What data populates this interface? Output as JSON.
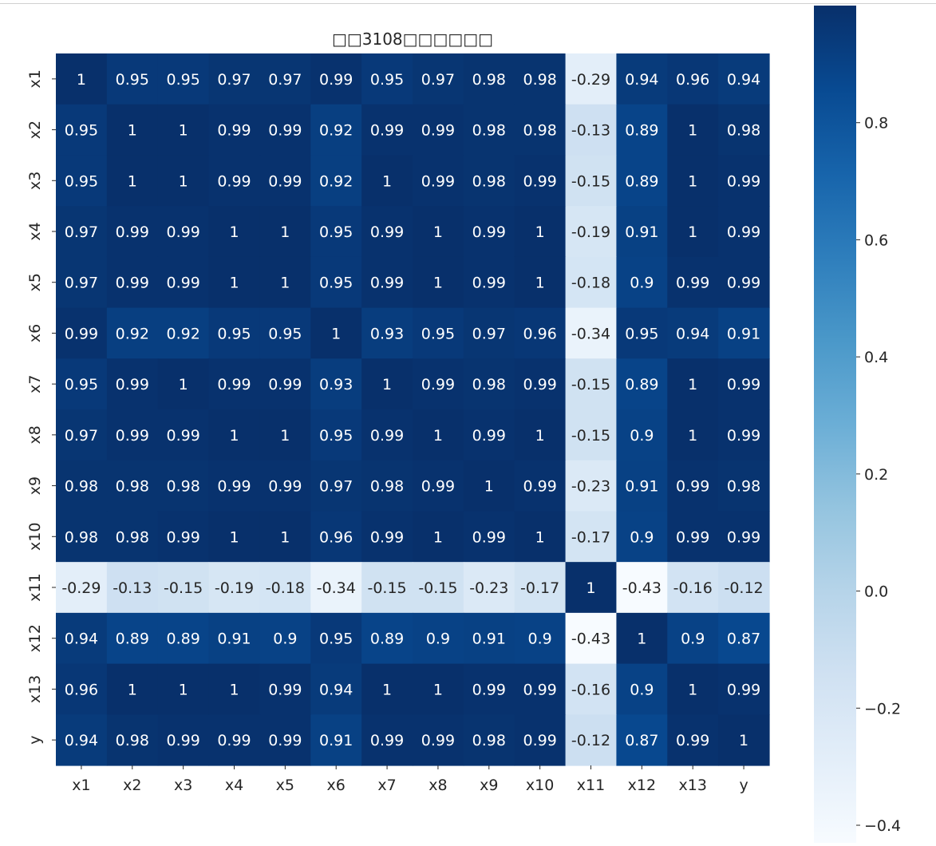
{
  "chart_data": {
    "type": "heatmap",
    "title": "□□3108□□□□□□",
    "x_labels": [
      "x1",
      "x2",
      "x3",
      "x4",
      "x5",
      "x6",
      "x7",
      "x8",
      "x9",
      "x10",
      "x11",
      "x12",
      "x13",
      "y"
    ],
    "y_labels": [
      "x1",
      "x2",
      "x3",
      "x4",
      "x5",
      "x6",
      "x7",
      "x8",
      "x9",
      "x10",
      "x11",
      "x12",
      "x13",
      "y"
    ],
    "values": [
      [
        1,
        0.95,
        0.95,
        0.97,
        0.97,
        0.99,
        0.95,
        0.97,
        0.98,
        0.98,
        -0.29,
        0.94,
        0.96,
        0.94
      ],
      [
        0.95,
        1,
        1,
        0.99,
        0.99,
        0.92,
        0.99,
        0.99,
        0.98,
        0.98,
        -0.13,
        0.89,
        1,
        0.98
      ],
      [
        0.95,
        1,
        1,
        0.99,
        0.99,
        0.92,
        1,
        0.99,
        0.98,
        0.99,
        -0.15,
        0.89,
        1,
        0.99
      ],
      [
        0.97,
        0.99,
        0.99,
        1,
        1,
        0.95,
        0.99,
        1,
        0.99,
        1,
        -0.19,
        0.91,
        1,
        0.99
      ],
      [
        0.97,
        0.99,
        0.99,
        1,
        1,
        0.95,
        0.99,
        1,
        0.99,
        1,
        -0.18,
        0.9,
        0.99,
        0.99
      ],
      [
        0.99,
        0.92,
        0.92,
        0.95,
        0.95,
        1,
        0.93,
        0.95,
        0.97,
        0.96,
        -0.34,
        0.95,
        0.94,
        0.91
      ],
      [
        0.95,
        0.99,
        1,
        0.99,
        0.99,
        0.93,
        1,
        0.99,
        0.98,
        0.99,
        -0.15,
        0.89,
        1,
        0.99
      ],
      [
        0.97,
        0.99,
        0.99,
        1,
        1,
        0.95,
        0.99,
        1,
        0.99,
        1,
        -0.15,
        0.9,
        1,
        0.99
      ],
      [
        0.98,
        0.98,
        0.98,
        0.99,
        0.99,
        0.97,
        0.98,
        0.99,
        1,
        0.99,
        -0.23,
        0.91,
        0.99,
        0.98
      ],
      [
        0.98,
        0.98,
        0.99,
        1,
        1,
        0.96,
        0.99,
        1,
        0.99,
        1,
        -0.17,
        0.9,
        0.99,
        0.99
      ],
      [
        -0.29,
        -0.13,
        -0.15,
        -0.19,
        -0.18,
        -0.34,
        -0.15,
        -0.15,
        -0.23,
        -0.17,
        1,
        -0.43,
        -0.16,
        -0.12
      ],
      [
        0.94,
        0.89,
        0.89,
        0.91,
        0.9,
        0.95,
        0.89,
        0.9,
        0.91,
        0.9,
        -0.43,
        1,
        0.9,
        0.87
      ],
      [
        0.96,
        1,
        1,
        1,
        0.99,
        0.94,
        1,
        1,
        0.99,
        0.99,
        -0.16,
        0.9,
        1,
        0.99
      ],
      [
        0.94,
        0.98,
        0.99,
        0.99,
        0.99,
        0.91,
        0.99,
        0.99,
        0.98,
        0.99,
        -0.12,
        0.87,
        0.99,
        1
      ]
    ],
    "colormap": "Blues",
    "colorbar": {
      "range": [
        -0.43,
        1
      ],
      "ticks": [
        0.8,
        0.6,
        0.4,
        0.2,
        0.0,
        -0.2,
        -0.4
      ],
      "tick_labels": [
        "0.8",
        "0.6",
        "0.4",
        "0.2",
        "0.0",
        "−0.2",
        "−0.4"
      ]
    },
    "annotated": true,
    "grid": false,
    "legend": "colorbar-right"
  }
}
